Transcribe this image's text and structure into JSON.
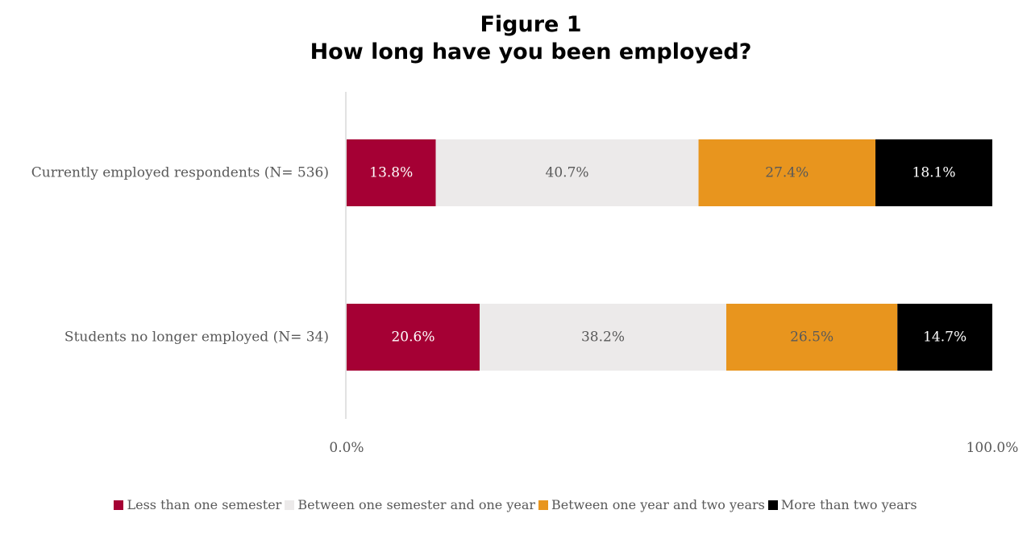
{
  "chart_data": {
    "type": "bar",
    "orientation": "horizontal",
    "stacked": true,
    "title_line1": "Figure 1",
    "title_line2": "How long have you been employed?",
    "categories": [
      "Currently employed respondents (N= 536)",
      "Students no longer employed (N= 34)"
    ],
    "series": [
      {
        "name": "Less than one semester",
        "color": "#A50034",
        "label_color": "#ffffff",
        "values": [
          13.8,
          20.6
        ],
        "labels": [
          "13.8%",
          "20.6%"
        ]
      },
      {
        "name": "Between one semester and one year",
        "color": "#ECEAEA",
        "label_color": "#595959",
        "values": [
          40.7,
          38.2
        ],
        "labels": [
          "40.7%",
          "38.2%"
        ]
      },
      {
        "name": "Between one year and two years",
        "color": "#E8951E",
        "label_color": "#595959",
        "values": [
          27.4,
          26.5
        ],
        "labels": [
          "27.4%",
          "26.5%"
        ]
      },
      {
        "name": "More than two years",
        "color": "#000000",
        "label_color": "#ffffff",
        "values": [
          18.1,
          14.7
        ],
        "labels": [
          "18.1%",
          "14.7%"
        ]
      }
    ],
    "xlim": [
      0,
      100
    ],
    "x_tick_labels": [
      "0.0%",
      "100.0%"
    ],
    "legend_position": "bottom",
    "grid": false
  }
}
